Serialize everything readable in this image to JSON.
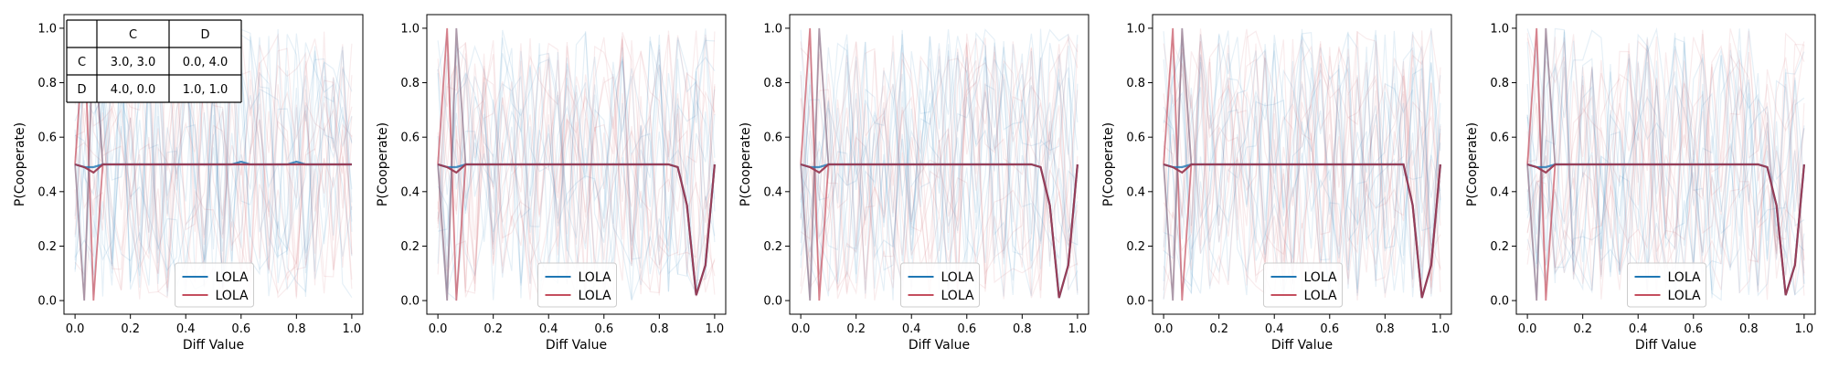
{
  "payoff_table": {
    "col_headers": [
      "C",
      "D"
    ],
    "rows": [
      {
        "label": "C",
        "cells": [
          "3.0, 3.0",
          "0.0, 4.0"
        ]
      },
      {
        "label": "D",
        "cells": [
          "4.0, 0.0",
          "1.0, 1.0"
        ]
      }
    ]
  },
  "colors": {
    "blue": "#1f77b4",
    "red": "#c44e5e",
    "dark_mean": "#9b3a52"
  },
  "chart_data": [
    {
      "type": "line",
      "xlabel": "Diff Value",
      "ylabel": "P(Cooperate)",
      "xlim": [
        -0.04,
        1.04
      ],
      "ylim": [
        -0.05,
        1.05
      ],
      "xticks": [
        "0.0",
        "0.2",
        "0.4",
        "0.6",
        "0.8",
        "1.0"
      ],
      "yticks": [
        "0.0",
        "0.2",
        "0.4",
        "0.6",
        "0.8",
        "1.0"
      ],
      "legend": [
        "LOLA",
        "LOLA"
      ],
      "legend_position": "lower-center",
      "grid": false,
      "series": [
        {
          "name": "LOLA",
          "color": "#1f77b4",
          "x": [
            0.0,
            0.0333,
            0.0667,
            0.1,
            0.1333,
            0.1667,
            0.2,
            0.2333,
            0.2667,
            0.3,
            0.3333,
            0.3667,
            0.4,
            0.4333,
            0.4667,
            0.5,
            0.5333,
            0.5667,
            0.6,
            0.6333,
            0.6667,
            0.7,
            0.7333,
            0.7667,
            0.8,
            0.8333,
            0.8667,
            0.9,
            0.9333,
            0.9667,
            1.0
          ],
          "y": [
            0.5,
            0.49,
            0.49,
            0.5,
            0.5,
            0.5,
            0.5,
            0.5,
            0.5,
            0.5,
            0.5,
            0.5,
            0.5,
            0.5,
            0.5,
            0.5,
            0.5,
            0.5,
            0.51,
            0.5,
            0.5,
            0.5,
            0.5,
            0.5,
            0.51,
            0.5,
            0.5,
            0.5,
            0.5,
            0.5,
            0.5
          ]
        },
        {
          "name": "LOLA",
          "color": "#c44e5e",
          "x": [
            0.0,
            0.0333,
            0.0667,
            0.1,
            0.1333,
            0.1667,
            0.2,
            0.2333,
            0.2667,
            0.3,
            0.3333,
            0.3667,
            0.4,
            0.4333,
            0.4667,
            0.5,
            0.5333,
            0.5667,
            0.6,
            0.6333,
            0.6667,
            0.7,
            0.7333,
            0.7667,
            0.8,
            0.8333,
            0.8667,
            0.9,
            0.9333,
            0.9667,
            1.0
          ],
          "y": [
            0.5,
            0.49,
            0.47,
            0.5,
            0.5,
            0.5,
            0.5,
            0.5,
            0.5,
            0.5,
            0.5,
            0.5,
            0.5,
            0.5,
            0.5,
            0.5,
            0.5,
            0.5,
            0.5,
            0.5,
            0.5,
            0.5,
            0.5,
            0.5,
            0.5,
            0.5,
            0.5,
            0.5,
            0.5,
            0.5,
            0.5
          ]
        }
      ]
    },
    {
      "type": "line",
      "xlabel": "Diff Value",
      "ylabel": "P(Cooperate)",
      "xlim": [
        -0.04,
        1.04
      ],
      "ylim": [
        -0.05,
        1.05
      ],
      "xticks": [
        "0.0",
        "0.2",
        "0.4",
        "0.6",
        "0.8",
        "1.0"
      ],
      "yticks": [
        "0.0",
        "0.2",
        "0.4",
        "0.6",
        "0.8",
        "1.0"
      ],
      "legend": [
        "LOLA",
        "LOLA"
      ],
      "legend_position": "lower-center",
      "grid": false,
      "series": [
        {
          "name": "LOLA",
          "color": "#1f77b4",
          "x": [
            0.0,
            0.0333,
            0.0667,
            0.1,
            0.1333,
            0.1667,
            0.2,
            0.2333,
            0.2667,
            0.3,
            0.3333,
            0.3667,
            0.4,
            0.4333,
            0.4667,
            0.5,
            0.5333,
            0.5667,
            0.6,
            0.6333,
            0.6667,
            0.7,
            0.7333,
            0.7667,
            0.8,
            0.8333,
            0.8667,
            0.9,
            0.9333,
            0.9667,
            1.0
          ],
          "y": [
            0.5,
            0.49,
            0.49,
            0.5,
            0.5,
            0.5,
            0.5,
            0.5,
            0.5,
            0.5,
            0.5,
            0.5,
            0.5,
            0.5,
            0.5,
            0.5,
            0.5,
            0.5,
            0.5,
            0.5,
            0.5,
            0.5,
            0.5,
            0.5,
            0.5,
            0.5,
            0.49,
            0.35,
            0.02,
            0.13,
            0.5
          ]
        },
        {
          "name": "LOLA",
          "color": "#c44e5e",
          "x": [
            0.0,
            0.0333,
            0.0667,
            0.1,
            0.1333,
            0.1667,
            0.2,
            0.2333,
            0.2667,
            0.3,
            0.3333,
            0.3667,
            0.4,
            0.4333,
            0.4667,
            0.5,
            0.5333,
            0.5667,
            0.6,
            0.6333,
            0.6667,
            0.7,
            0.7333,
            0.7667,
            0.8,
            0.8333,
            0.8667,
            0.9,
            0.9333,
            0.9667,
            1.0
          ],
          "y": [
            0.5,
            0.49,
            0.47,
            0.5,
            0.5,
            0.5,
            0.5,
            0.5,
            0.5,
            0.5,
            0.5,
            0.5,
            0.5,
            0.5,
            0.5,
            0.5,
            0.5,
            0.5,
            0.5,
            0.5,
            0.5,
            0.5,
            0.5,
            0.5,
            0.5,
            0.5,
            0.49,
            0.35,
            0.02,
            0.13,
            0.5
          ]
        }
      ]
    },
    {
      "type": "line",
      "xlabel": "Diff Value",
      "ylabel": "P(Cooperate)",
      "xlim": [
        -0.04,
        1.04
      ],
      "ylim": [
        -0.05,
        1.05
      ],
      "xticks": [
        "0.0",
        "0.2",
        "0.4",
        "0.6",
        "0.8",
        "1.0"
      ],
      "yticks": [
        "0.0",
        "0.2",
        "0.4",
        "0.6",
        "0.8",
        "1.0"
      ],
      "legend": [
        "LOLA",
        "LOLA"
      ],
      "legend_position": "lower-center",
      "grid": false,
      "series": [
        {
          "name": "LOLA",
          "color": "#1f77b4",
          "x": [
            0.0,
            0.0333,
            0.0667,
            0.1,
            0.1333,
            0.1667,
            0.2,
            0.2333,
            0.2667,
            0.3,
            0.3333,
            0.3667,
            0.4,
            0.4333,
            0.4667,
            0.5,
            0.5333,
            0.5667,
            0.6,
            0.6333,
            0.6667,
            0.7,
            0.7333,
            0.7667,
            0.8,
            0.8333,
            0.8667,
            0.9,
            0.9333,
            0.9667,
            1.0
          ],
          "y": [
            0.5,
            0.49,
            0.49,
            0.5,
            0.5,
            0.5,
            0.5,
            0.5,
            0.5,
            0.5,
            0.5,
            0.5,
            0.5,
            0.5,
            0.5,
            0.5,
            0.5,
            0.5,
            0.5,
            0.5,
            0.5,
            0.5,
            0.5,
            0.5,
            0.5,
            0.5,
            0.49,
            0.35,
            0.01,
            0.13,
            0.5
          ]
        },
        {
          "name": "LOLA",
          "color": "#c44e5e",
          "x": [
            0.0,
            0.0333,
            0.0667,
            0.1,
            0.1333,
            0.1667,
            0.2,
            0.2333,
            0.2667,
            0.3,
            0.3333,
            0.3667,
            0.4,
            0.4333,
            0.4667,
            0.5,
            0.5333,
            0.5667,
            0.6,
            0.6333,
            0.6667,
            0.7,
            0.7333,
            0.7667,
            0.8,
            0.8333,
            0.8667,
            0.9,
            0.9333,
            0.9667,
            1.0
          ],
          "y": [
            0.5,
            0.49,
            0.47,
            0.5,
            0.5,
            0.5,
            0.5,
            0.5,
            0.5,
            0.5,
            0.5,
            0.5,
            0.5,
            0.5,
            0.5,
            0.5,
            0.5,
            0.5,
            0.5,
            0.5,
            0.5,
            0.5,
            0.5,
            0.5,
            0.5,
            0.5,
            0.49,
            0.35,
            0.01,
            0.13,
            0.5
          ]
        }
      ]
    },
    {
      "type": "line",
      "xlabel": "Diff Value",
      "ylabel": "P(Cooperate)",
      "xlim": [
        -0.04,
        1.04
      ],
      "ylim": [
        -0.05,
        1.05
      ],
      "xticks": [
        "0.0",
        "0.2",
        "0.4",
        "0.6",
        "0.8",
        "1.0"
      ],
      "yticks": [
        "0.0",
        "0.2",
        "0.4",
        "0.6",
        "0.8",
        "1.0"
      ],
      "legend": [
        "LOLA",
        "LOLA"
      ],
      "legend_position": "lower-center",
      "grid": false,
      "series": [
        {
          "name": "LOLA",
          "color": "#1f77b4",
          "x": [
            0.0,
            0.0333,
            0.0667,
            0.1,
            0.1333,
            0.1667,
            0.2,
            0.2333,
            0.2667,
            0.3,
            0.3333,
            0.3667,
            0.4,
            0.4333,
            0.4667,
            0.5,
            0.5333,
            0.5667,
            0.6,
            0.6333,
            0.6667,
            0.7,
            0.7333,
            0.7667,
            0.8,
            0.8333,
            0.8667,
            0.9,
            0.9333,
            0.9667,
            1.0
          ],
          "y": [
            0.5,
            0.49,
            0.49,
            0.5,
            0.5,
            0.5,
            0.5,
            0.5,
            0.5,
            0.5,
            0.5,
            0.5,
            0.5,
            0.5,
            0.5,
            0.5,
            0.5,
            0.5,
            0.5,
            0.5,
            0.5,
            0.5,
            0.5,
            0.5,
            0.5,
            0.5,
            0.5,
            0.35,
            0.01,
            0.13,
            0.5
          ]
        },
        {
          "name": "LOLA",
          "color": "#c44e5e",
          "x": [
            0.0,
            0.0333,
            0.0667,
            0.1,
            0.1333,
            0.1667,
            0.2,
            0.2333,
            0.2667,
            0.3,
            0.3333,
            0.3667,
            0.4,
            0.4333,
            0.4667,
            0.5,
            0.5333,
            0.5667,
            0.6,
            0.6333,
            0.6667,
            0.7,
            0.7333,
            0.7667,
            0.8,
            0.8333,
            0.8667,
            0.9,
            0.9333,
            0.9667,
            1.0
          ],
          "y": [
            0.5,
            0.49,
            0.47,
            0.5,
            0.5,
            0.5,
            0.5,
            0.5,
            0.5,
            0.5,
            0.5,
            0.5,
            0.5,
            0.5,
            0.5,
            0.5,
            0.5,
            0.5,
            0.5,
            0.5,
            0.5,
            0.5,
            0.5,
            0.5,
            0.5,
            0.5,
            0.5,
            0.35,
            0.01,
            0.13,
            0.5
          ]
        }
      ]
    },
    {
      "type": "line",
      "xlabel": "Diff Value",
      "ylabel": "P(Cooperate)",
      "xlim": [
        -0.04,
        1.04
      ],
      "ylim": [
        -0.05,
        1.05
      ],
      "xticks": [
        "0.0",
        "0.2",
        "0.4",
        "0.6",
        "0.8",
        "1.0"
      ],
      "yticks": [
        "0.0",
        "0.2",
        "0.4",
        "0.6",
        "0.8",
        "1.0"
      ],
      "legend": [
        "LOLA",
        "LOLA"
      ],
      "legend_position": "lower-center",
      "grid": false,
      "series": [
        {
          "name": "LOLA",
          "color": "#1f77b4",
          "x": [
            0.0,
            0.0333,
            0.0667,
            0.1,
            0.1333,
            0.1667,
            0.2,
            0.2333,
            0.2667,
            0.3,
            0.3333,
            0.3667,
            0.4,
            0.4333,
            0.4667,
            0.5,
            0.5333,
            0.5667,
            0.6,
            0.6333,
            0.6667,
            0.7,
            0.7333,
            0.7667,
            0.8,
            0.8333,
            0.8667,
            0.9,
            0.9333,
            0.9667,
            1.0
          ],
          "y": [
            0.5,
            0.49,
            0.49,
            0.5,
            0.5,
            0.5,
            0.5,
            0.5,
            0.5,
            0.5,
            0.5,
            0.5,
            0.5,
            0.5,
            0.5,
            0.5,
            0.5,
            0.5,
            0.5,
            0.5,
            0.5,
            0.5,
            0.5,
            0.5,
            0.5,
            0.5,
            0.49,
            0.35,
            0.02,
            0.13,
            0.5
          ]
        },
        {
          "name": "LOLA",
          "color": "#c44e5e",
          "x": [
            0.0,
            0.0333,
            0.0667,
            0.1,
            0.1333,
            0.1667,
            0.2,
            0.2333,
            0.2667,
            0.3,
            0.3333,
            0.3667,
            0.4,
            0.4333,
            0.4667,
            0.5,
            0.5333,
            0.5667,
            0.6,
            0.6333,
            0.6667,
            0.7,
            0.7333,
            0.7667,
            0.8,
            0.8333,
            0.8667,
            0.9,
            0.9333,
            0.9667,
            1.0
          ],
          "y": [
            0.5,
            0.49,
            0.47,
            0.5,
            0.5,
            0.5,
            0.5,
            0.5,
            0.5,
            0.5,
            0.5,
            0.5,
            0.5,
            0.5,
            0.5,
            0.5,
            0.5,
            0.5,
            0.5,
            0.5,
            0.5,
            0.5,
            0.5,
            0.5,
            0.5,
            0.5,
            0.49,
            0.35,
            0.02,
            0.13,
            0.5
          ]
        }
      ]
    }
  ]
}
